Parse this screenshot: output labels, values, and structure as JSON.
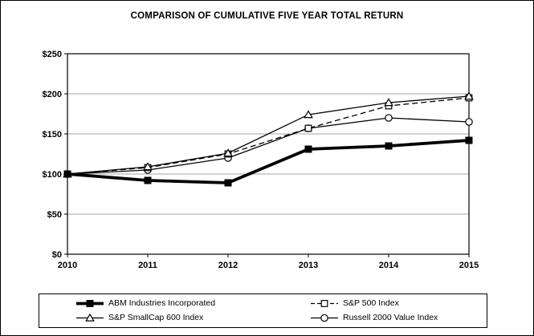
{
  "chart_data": {
    "type": "line",
    "title": "COMPARISON OF CUMULATIVE FIVE YEAR TOTAL RETURN",
    "x_labels": [
      "2010",
      "2011",
      "2012",
      "2013",
      "2014",
      "2015"
    ],
    "ylim": [
      0,
      250
    ],
    "ytick_step": 50,
    "ytick_labels": [
      "$0",
      "$50",
      "$100",
      "$150",
      "$200",
      "$250"
    ],
    "grid": "horizontal-gray",
    "legend_position": "bottom-box",
    "draw_order": [
      3,
      1,
      2,
      0
    ],
    "colors": {
      "line": "#000000",
      "grid": "#a6a6a6",
      "frame": "#000000",
      "background": "#ffffff"
    },
    "series": [
      {
        "name": "ABM Industries Incorporated",
        "values": [
          100,
          92,
          89,
          131,
          135,
          142
        ],
        "line": "solid-thick",
        "marker": "filled-square",
        "color": "#000000"
      },
      {
        "name": "S&P 500 Index",
        "values": [
          100,
          108,
          125,
          157,
          185,
          195
        ],
        "line": "dashed",
        "marker": "open-square",
        "color": "#000000"
      },
      {
        "name": "S&P SmallCap 600 Index",
        "values": [
          100,
          109,
          126,
          174,
          189,
          197
        ],
        "line": "solid-thin",
        "marker": "open-triangle",
        "color": "#000000"
      },
      {
        "name": "Russell 2000 Value Index",
        "values": [
          100,
          105,
          120,
          157,
          170,
          165
        ],
        "line": "solid-thin",
        "marker": "open-circle",
        "color": "#000000"
      }
    ]
  }
}
